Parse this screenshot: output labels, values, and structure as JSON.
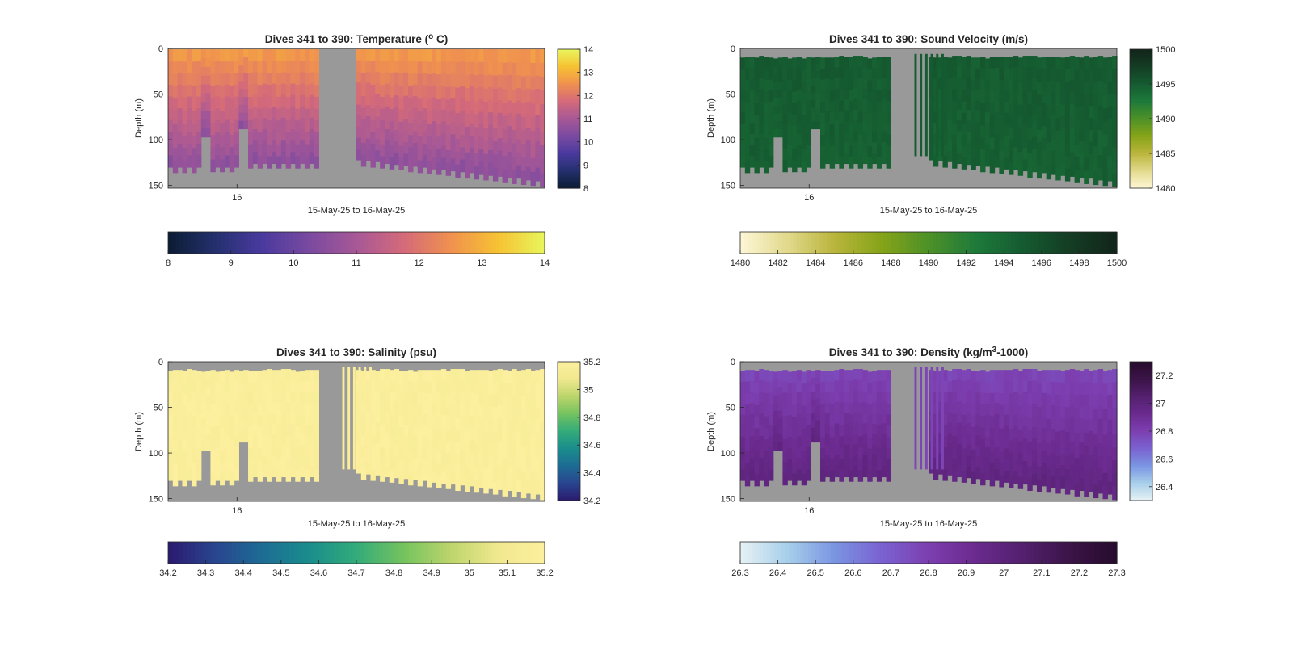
{
  "chart_data": [
    {
      "type": "heatmap",
      "variable": "temperature",
      "title": "Dives 341 to 390: Temperature (",
      "title_sup": "o",
      "title_end": " C)",
      "xlabel": "15-May-25 to 16-May-25",
      "xtick_labels": [
        "16"
      ],
      "ylabel": "Depth (m)",
      "yticks": [
        0,
        50,
        100,
        150
      ],
      "ylim": [
        0,
        153
      ],
      "clim": [
        8,
        14
      ],
      "colorbar_ticks": [
        14,
        13,
        12,
        11,
        10,
        9,
        8
      ],
      "h_colorbar_ticks": [
        8,
        9,
        10,
        11,
        12,
        13,
        14
      ],
      "colormap": [
        "#0b1c33",
        "#24306e",
        "#4a3a9f",
        "#7a4aa0",
        "#a75896",
        "#d46a7a",
        "#f0914f",
        "#f6c233",
        "#e8f55c"
      ],
      "surface_value": 12.6,
      "deep_value": 10.6
    },
    {
      "type": "heatmap",
      "variable": "sound_velocity",
      "title": "Dives 341 to 390: Sound Velocity (m/s)",
      "xlabel": "15-May-25 to 16-May-25",
      "xtick_labels": [
        "16"
      ],
      "ylabel": "Depth (m)",
      "yticks": [
        0,
        50,
        100,
        150
      ],
      "ylim": [
        0,
        153
      ],
      "clim": [
        1480,
        1500
      ],
      "colorbar_ticks": [
        1500,
        1495,
        1490,
        1485,
        1480
      ],
      "h_colorbar_ticks": [
        1480,
        1482,
        1484,
        1486,
        1488,
        1490,
        1492,
        1494,
        1496,
        1498,
        1500
      ],
      "colormap": [
        "#fdf7d7",
        "#e2d98c",
        "#b9b53c",
        "#86a418",
        "#4d9128",
        "#1e7a3a",
        "#155b31",
        "#143d24",
        "#12241a"
      ],
      "surface_value": 1495.0,
      "deep_value": 1494.6
    },
    {
      "type": "heatmap",
      "variable": "salinity",
      "title": "Dives 341 to 390: Salinity (psu)",
      "xlabel": "15-May-25 to 16-May-25",
      "xtick_labels": [
        "16"
      ],
      "ylabel": "Depth (m)",
      "yticks": [
        0,
        50,
        100,
        150
      ],
      "ylim": [
        0,
        153
      ],
      "clim": [
        34.2,
        35.2
      ],
      "colorbar_ticks": [
        35.2,
        35,
        34.8,
        34.6,
        34.4,
        34.2
      ],
      "h_colorbar_ticks": [
        34.2,
        34.3,
        34.4,
        34.5,
        34.6,
        34.7,
        34.8,
        34.9,
        35,
        35.1,
        35.2
      ],
      "colormap": [
        "#2a1a6e",
        "#29458f",
        "#1d6c94",
        "#1a8d8c",
        "#33ab7a",
        "#74c35f",
        "#bcd56b",
        "#f0e88f",
        "#fcef9e"
      ],
      "surface_value": 35.18,
      "deep_value": 35.18
    },
    {
      "type": "heatmap",
      "variable": "density",
      "title": "Dives 341 to 390: Density (kg/m",
      "title_sup": "3",
      "title_end": "-1000)",
      "xlabel": "15-May-25 to 16-May-25",
      "xtick_labels": [
        "16"
      ],
      "ylabel": "Depth (m)",
      "yticks": [
        0,
        50,
        100,
        150
      ],
      "ylim": [
        0,
        153
      ],
      "clim": [
        26.3,
        27.3
      ],
      "colorbar_ticks": [
        27.2,
        27,
        26.8,
        26.6,
        26.4
      ],
      "h_colorbar_ticks": [
        26.3,
        26.4,
        26.5,
        26.6,
        26.7,
        26.8,
        26.9,
        27,
        27.1,
        27.2,
        27.3
      ],
      "colormap": [
        "#e7f2f4",
        "#a8cfea",
        "#7a95e2",
        "#7a62d1",
        "#7d3fb0",
        "#6a2a8e",
        "#53206e",
        "#3b1448",
        "#260b2c"
      ],
      "surface_value": 26.78,
      "deep_value": 26.98
    }
  ]
}
